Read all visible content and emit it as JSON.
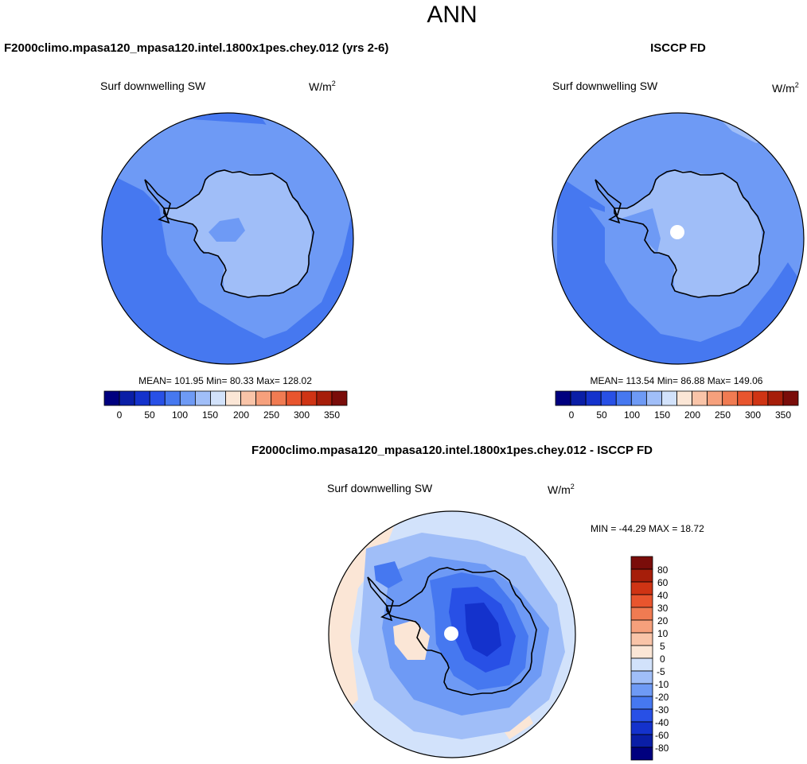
{
  "page": {
    "title": "ANN"
  },
  "colors": {
    "scale_seq": [
      "#00007f",
      "#0a1ea6",
      "#1432cc",
      "#2850e6",
      "#4678f0",
      "#6e9af5",
      "#a0bef8",
      "#d2e2fb",
      "#fbe6d6",
      "#f9c4a8",
      "#f6a07c",
      "#f07b52",
      "#e8552e",
      "#cf3414",
      "#a61e0a",
      "#7a0d0a"
    ],
    "diff_scale": [
      "#00007f",
      "#0a1ea6",
      "#1432cc",
      "#2850e6",
      "#4678f0",
      "#6e9af5",
      "#a0bef8",
      "#d2e2fb",
      "#fbe6d6",
      "#f9c4a8",
      "#f6a07c",
      "#f07b52",
      "#e8552e",
      "#cf3414",
      "#a61e0a",
      "#7a0d0a"
    ]
  },
  "panels": [
    {
      "id": "model",
      "title": "F2000climo.mpasa120_mpasa120.intel.1800x1pes.chey.012 (yrs 2-6)",
      "variable": "Surf downwelling SW",
      "units": "W/m",
      "units_sup": "2",
      "stats": "MEAN= 101.95  Min=  80.33  Max= 128.02",
      "colorbar_labels": [
        "0",
        "50",
        "100",
        "150",
        "200",
        "250",
        "300",
        "350"
      ]
    },
    {
      "id": "obs",
      "title": "ISCCP FD",
      "variable": "Surf downwelling SW",
      "units": "W/m",
      "units_sup": "2",
      "stats": "MEAN= 113.54  Min=  86.88  Max= 149.06",
      "colorbar_labels": [
        "0",
        "50",
        "100",
        "150",
        "200",
        "250",
        "300",
        "350"
      ]
    },
    {
      "id": "diff",
      "title": "F2000climo.mpasa120_mpasa120.intel.1800x1pes.chey.012 - ISCCP FD",
      "variable": "Surf downwelling SW",
      "units": "W/m",
      "units_sup": "2",
      "stats": "MIN = -44.29 MAX =  18.72",
      "colorbar_labels": [
        "80",
        "60",
        "40",
        "30",
        "20",
        "10",
        "5",
        "0",
        "-5",
        "-10",
        "-20",
        "-30",
        "-40",
        "-60",
        "-80"
      ]
    }
  ]
}
